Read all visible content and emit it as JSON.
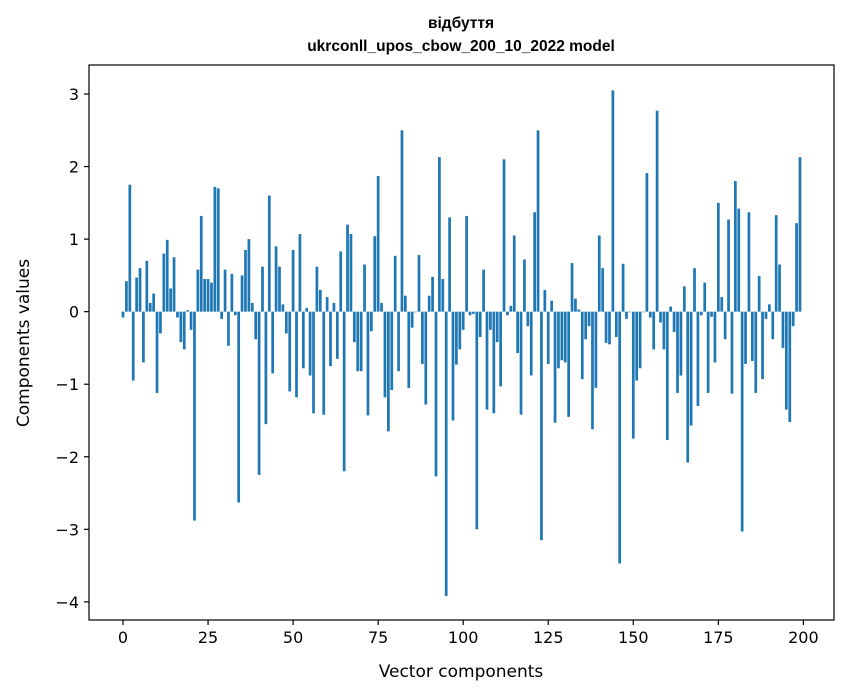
{
  "chart_data": {
    "type": "bar",
    "title": "відбуття",
    "subtitle": "ukrconll_upos_cbow_200_10_2022 model",
    "xlabel": "Vector components",
    "ylabel": "Components values",
    "bar_color": "#1f77b4",
    "xlim": [
      -10,
      209
    ],
    "ylim": [
      -4.25,
      3.4
    ],
    "xticks": [
      0,
      25,
      50,
      75,
      100,
      125,
      150,
      175,
      200
    ],
    "yticks": [
      -4,
      -3,
      -2,
      -1,
      0,
      1,
      2,
      3
    ],
    "x": [
      0,
      1,
      2,
      3,
      4,
      5,
      6,
      7,
      8,
      9,
      10,
      11,
      12,
      13,
      14,
      15,
      16,
      17,
      18,
      19,
      20,
      21,
      22,
      23,
      24,
      25,
      26,
      27,
      28,
      29,
      30,
      31,
      32,
      33,
      34,
      35,
      36,
      37,
      38,
      39,
      40,
      41,
      42,
      43,
      44,
      45,
      46,
      47,
      48,
      49,
      50,
      51,
      52,
      53,
      54,
      55,
      56,
      57,
      58,
      59,
      60,
      61,
      62,
      63,
      64,
      65,
      66,
      67,
      68,
      69,
      70,
      71,
      72,
      73,
      74,
      75,
      76,
      77,
      78,
      79,
      80,
      81,
      82,
      83,
      84,
      85,
      86,
      87,
      88,
      89,
      90,
      91,
      92,
      93,
      94,
      95,
      96,
      97,
      98,
      99,
      100,
      101,
      102,
      103,
      104,
      105,
      106,
      107,
      108,
      109,
      110,
      111,
      112,
      113,
      114,
      115,
      116,
      117,
      118,
      119,
      120,
      121,
      122,
      123,
      124,
      125,
      126,
      127,
      128,
      129,
      130,
      131,
      132,
      133,
      134,
      135,
      136,
      137,
      138,
      139,
      140,
      141,
      142,
      143,
      144,
      145,
      146,
      147,
      148,
      149,
      150,
      151,
      152,
      153,
      154,
      155,
      156,
      157,
      158,
      159,
      160,
      161,
      162,
      163,
      164,
      165,
      166,
      167,
      168,
      169,
      170,
      171,
      172,
      173,
      174,
      175,
      176,
      177,
      178,
      179,
      180,
      181,
      182,
      183,
      184,
      185,
      186,
      187,
      188,
      189,
      190,
      191,
      192,
      193,
      194,
      195,
      196,
      197,
      198,
      199
    ],
    "values": [
      -0.08,
      0.42,
      1.75,
      -0.95,
      0.47,
      0.6,
      -0.7,
      0.7,
      0.12,
      0.25,
      -1.12,
      -0.3,
      0.8,
      0.99,
      0.32,
      0.75,
      -0.08,
      -0.42,
      -0.52,
      0.02,
      -0.25,
      -2.88,
      0.58,
      1.32,
      0.45,
      0.45,
      0.4,
      1.72,
      1.7,
      -0.1,
      0.58,
      -0.47,
      0.52,
      -0.05,
      -2.63,
      0.5,
      0.85,
      1.0,
      0.12,
      -0.38,
      -2.25,
      0.62,
      -1.55,
      1.6,
      -0.85,
      0.9,
      0.62,
      0.1,
      -0.3,
      -1.1,
      0.85,
      -1.18,
      1.07,
      -0.78,
      0.05,
      -0.88,
      -1.4,
      0.62,
      0.3,
      -1.42,
      0.2,
      -0.75,
      0.12,
      -0.65,
      0.83,
      -2.2,
      1.2,
      1.07,
      -0.42,
      -0.82,
      -0.82,
      0.65,
      -1.43,
      -0.27,
      1.04,
      1.87,
      0.12,
      -1.18,
      -1.65,
      -1.08,
      0.77,
      -0.82,
      2.5,
      0.22,
      -1.05,
      -0.22,
      0.0,
      0.78,
      -0.72,
      -1.28,
      0.22,
      0.48,
      -2.27,
      2.13,
      0.45,
      -3.92,
      1.3,
      -1.5,
      -0.73,
      -0.52,
      -0.25,
      1.32,
      -0.05,
      -0.03,
      -3.0,
      -0.35,
      0.58,
      -1.35,
      -0.25,
      -1.4,
      -0.42,
      -1.03,
      2.1,
      -0.05,
      0.08,
      1.05,
      -0.57,
      -1.42,
      0.72,
      -0.2,
      -0.88,
      1.37,
      2.5,
      -3.15,
      0.3,
      -0.72,
      0.15,
      -1.53,
      -0.78,
      -0.67,
      -0.7,
      -1.45,
      0.67,
      0.18,
      0.03,
      -0.93,
      -0.38,
      -0.2,
      -1.62,
      -1.05,
      1.05,
      0.6,
      -0.43,
      -0.45,
      3.05,
      -0.35,
      -3.47,
      0.66,
      -0.1,
      0.0,
      -1.75,
      -0.95,
      -0.78,
      0.0,
      1.91,
      -0.08,
      -0.52,
      2.77,
      -0.15,
      -0.52,
      -1.77,
      0.07,
      -0.28,
      -1.12,
      -0.88,
      0.35,
      -2.08,
      -1.57,
      0.6,
      -1.3,
      -0.05,
      0.4,
      -1.12,
      -0.07,
      -0.7,
      1.5,
      0.2,
      -0.38,
      1.27,
      -1.13,
      1.8,
      1.42,
      -3.03,
      -0.72,
      1.37,
      -0.68,
      -1.12,
      0.49,
      -0.93,
      -0.1,
      0.1,
      -0.38,
      1.33,
      0.65,
      -0.5,
      -1.35,
      -1.52,
      -0.2,
      1.22,
      2.13
    ]
  }
}
